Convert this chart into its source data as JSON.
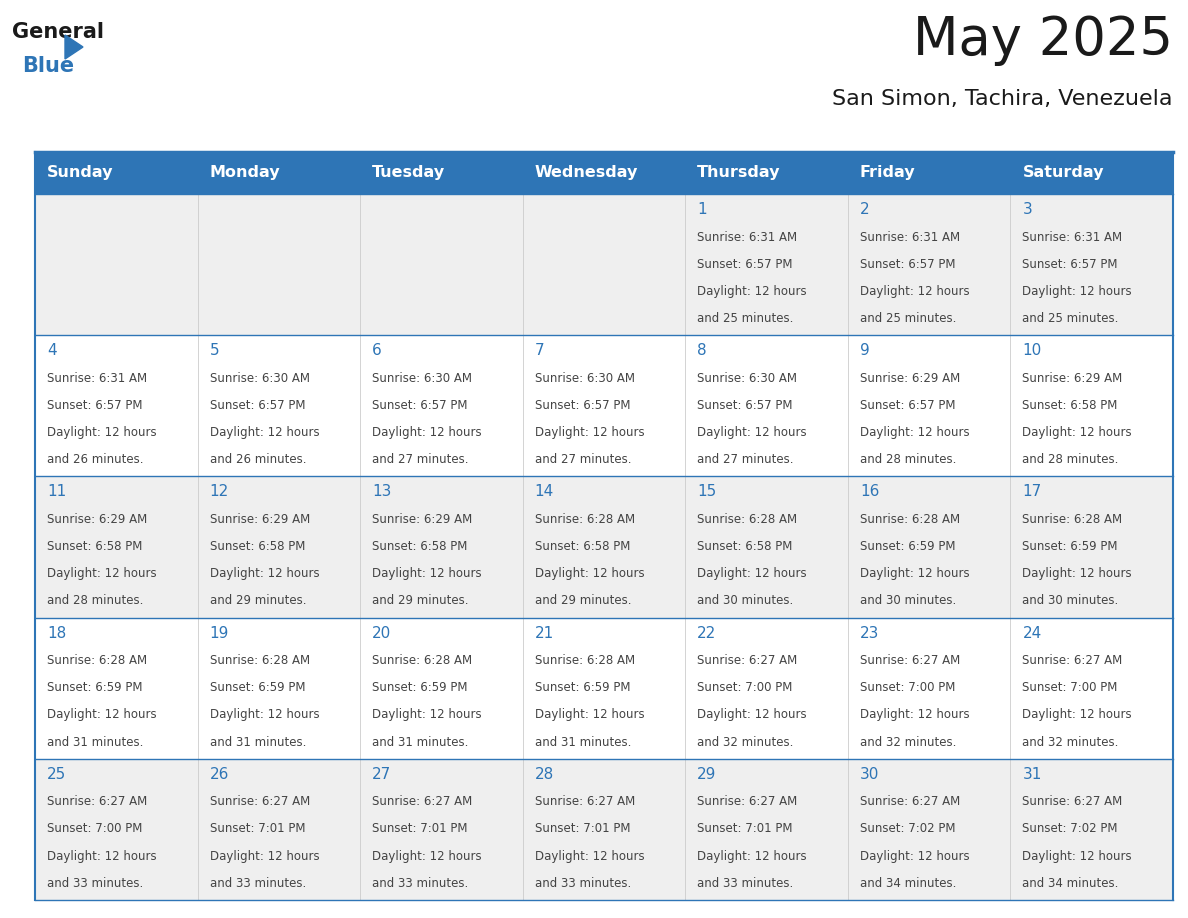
{
  "title": "May 2025",
  "subtitle": "San Simon, Tachira, Venezuela",
  "days_of_week": [
    "Sunday",
    "Monday",
    "Tuesday",
    "Wednesday",
    "Thursday",
    "Friday",
    "Saturday"
  ],
  "header_bg_color": "#2E75B6",
  "header_text_color": "#FFFFFF",
  "cell_bg_light": "#EFEFEF",
  "cell_bg_white": "#FFFFFF",
  "day_number_color": "#2E75B6",
  "text_color": "#444444",
  "line_color": "#2E75B6",
  "calendar_data": [
    [
      {
        "day": null,
        "sunrise": null,
        "sunset": null,
        "daylight": null
      },
      {
        "day": null,
        "sunrise": null,
        "sunset": null,
        "daylight": null
      },
      {
        "day": null,
        "sunrise": null,
        "sunset": null,
        "daylight": null
      },
      {
        "day": null,
        "sunrise": null,
        "sunset": null,
        "daylight": null
      },
      {
        "day": 1,
        "sunrise": "6:31 AM",
        "sunset": "6:57 PM",
        "daylight": "12 hours\nand 25 minutes."
      },
      {
        "day": 2,
        "sunrise": "6:31 AM",
        "sunset": "6:57 PM",
        "daylight": "12 hours\nand 25 minutes."
      },
      {
        "day": 3,
        "sunrise": "6:31 AM",
        "sunset": "6:57 PM",
        "daylight": "12 hours\nand 25 minutes."
      }
    ],
    [
      {
        "day": 4,
        "sunrise": "6:31 AM",
        "sunset": "6:57 PM",
        "daylight": "12 hours\nand 26 minutes."
      },
      {
        "day": 5,
        "sunrise": "6:30 AM",
        "sunset": "6:57 PM",
        "daylight": "12 hours\nand 26 minutes."
      },
      {
        "day": 6,
        "sunrise": "6:30 AM",
        "sunset": "6:57 PM",
        "daylight": "12 hours\nand 27 minutes."
      },
      {
        "day": 7,
        "sunrise": "6:30 AM",
        "sunset": "6:57 PM",
        "daylight": "12 hours\nand 27 minutes."
      },
      {
        "day": 8,
        "sunrise": "6:30 AM",
        "sunset": "6:57 PM",
        "daylight": "12 hours\nand 27 minutes."
      },
      {
        "day": 9,
        "sunrise": "6:29 AM",
        "sunset": "6:57 PM",
        "daylight": "12 hours\nand 28 minutes."
      },
      {
        "day": 10,
        "sunrise": "6:29 AM",
        "sunset": "6:58 PM",
        "daylight": "12 hours\nand 28 minutes."
      }
    ],
    [
      {
        "day": 11,
        "sunrise": "6:29 AM",
        "sunset": "6:58 PM",
        "daylight": "12 hours\nand 28 minutes."
      },
      {
        "day": 12,
        "sunrise": "6:29 AM",
        "sunset": "6:58 PM",
        "daylight": "12 hours\nand 29 minutes."
      },
      {
        "day": 13,
        "sunrise": "6:29 AM",
        "sunset": "6:58 PM",
        "daylight": "12 hours\nand 29 minutes."
      },
      {
        "day": 14,
        "sunrise": "6:28 AM",
        "sunset": "6:58 PM",
        "daylight": "12 hours\nand 29 minutes."
      },
      {
        "day": 15,
        "sunrise": "6:28 AM",
        "sunset": "6:58 PM",
        "daylight": "12 hours\nand 30 minutes."
      },
      {
        "day": 16,
        "sunrise": "6:28 AM",
        "sunset": "6:59 PM",
        "daylight": "12 hours\nand 30 minutes."
      },
      {
        "day": 17,
        "sunrise": "6:28 AM",
        "sunset": "6:59 PM",
        "daylight": "12 hours\nand 30 minutes."
      }
    ],
    [
      {
        "day": 18,
        "sunrise": "6:28 AM",
        "sunset": "6:59 PM",
        "daylight": "12 hours\nand 31 minutes."
      },
      {
        "day": 19,
        "sunrise": "6:28 AM",
        "sunset": "6:59 PM",
        "daylight": "12 hours\nand 31 minutes."
      },
      {
        "day": 20,
        "sunrise": "6:28 AM",
        "sunset": "6:59 PM",
        "daylight": "12 hours\nand 31 minutes."
      },
      {
        "day": 21,
        "sunrise": "6:28 AM",
        "sunset": "6:59 PM",
        "daylight": "12 hours\nand 31 minutes."
      },
      {
        "day": 22,
        "sunrise": "6:27 AM",
        "sunset": "7:00 PM",
        "daylight": "12 hours\nand 32 minutes."
      },
      {
        "day": 23,
        "sunrise": "6:27 AM",
        "sunset": "7:00 PM",
        "daylight": "12 hours\nand 32 minutes."
      },
      {
        "day": 24,
        "sunrise": "6:27 AM",
        "sunset": "7:00 PM",
        "daylight": "12 hours\nand 32 minutes."
      }
    ],
    [
      {
        "day": 25,
        "sunrise": "6:27 AM",
        "sunset": "7:00 PM",
        "daylight": "12 hours\nand 33 minutes."
      },
      {
        "day": 26,
        "sunrise": "6:27 AM",
        "sunset": "7:01 PM",
        "daylight": "12 hours\nand 33 minutes."
      },
      {
        "day": 27,
        "sunrise": "6:27 AM",
        "sunset": "7:01 PM",
        "daylight": "12 hours\nand 33 minutes."
      },
      {
        "day": 28,
        "sunrise": "6:27 AM",
        "sunset": "7:01 PM",
        "daylight": "12 hours\nand 33 minutes."
      },
      {
        "day": 29,
        "sunrise": "6:27 AM",
        "sunset": "7:01 PM",
        "daylight": "12 hours\nand 33 minutes."
      },
      {
        "day": 30,
        "sunrise": "6:27 AM",
        "sunset": "7:02 PM",
        "daylight": "12 hours\nand 34 minutes."
      },
      {
        "day": 31,
        "sunrise": "6:27 AM",
        "sunset": "7:02 PM",
        "daylight": "12 hours\nand 34 minutes."
      }
    ]
  ],
  "fig_width": 11.88,
  "fig_height": 9.18,
  "dpi": 100
}
